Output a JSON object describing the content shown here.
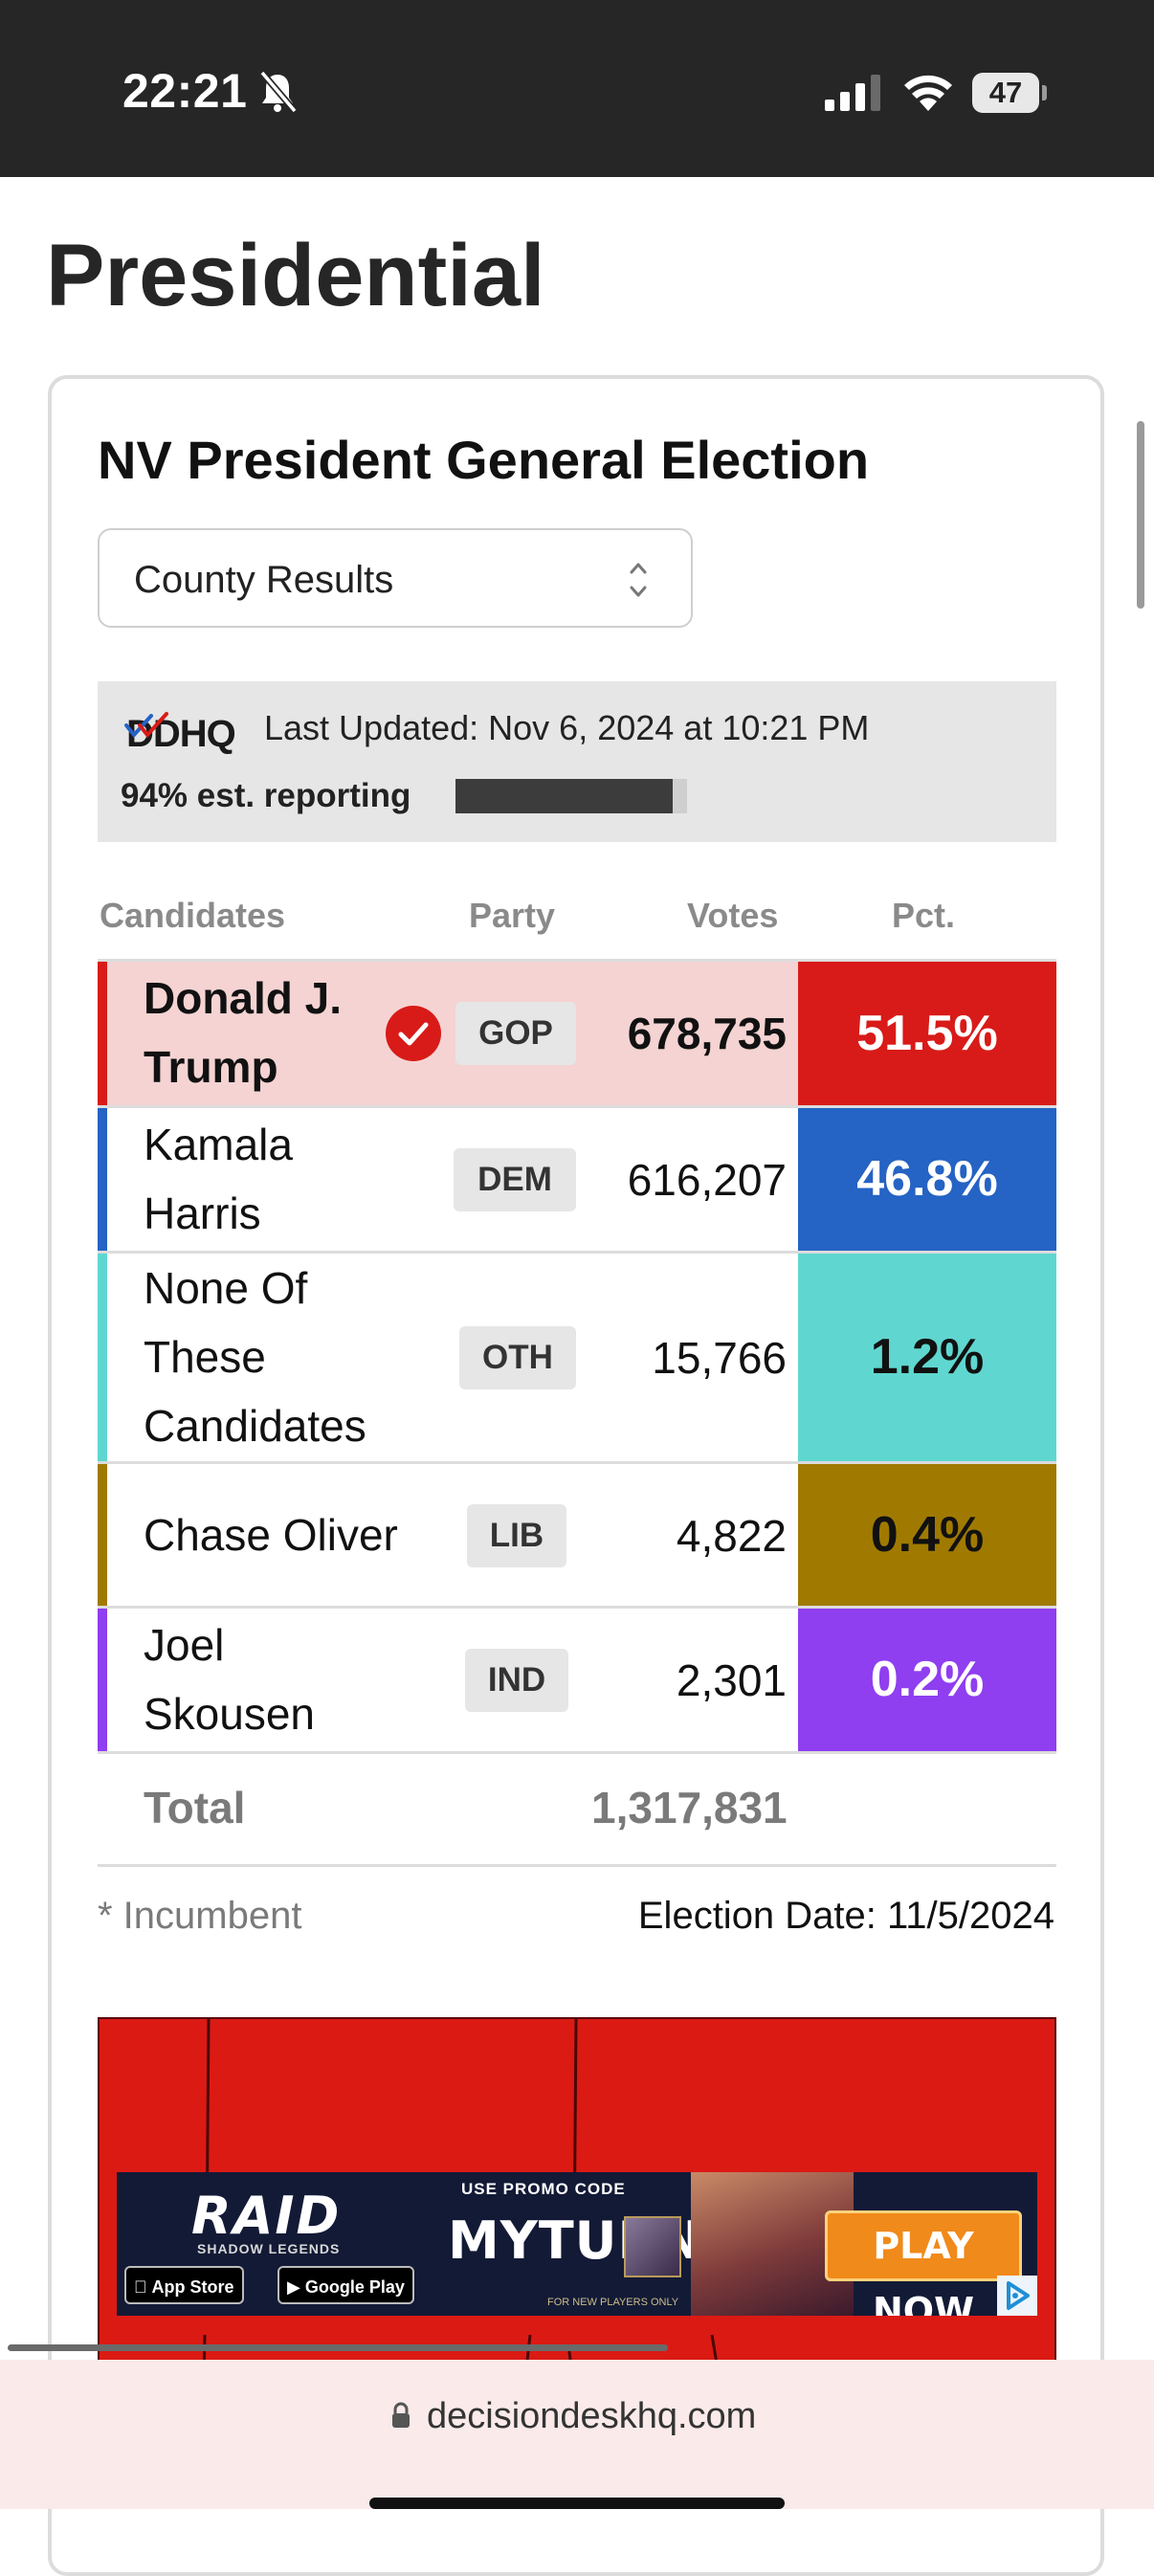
{
  "status_bar": {
    "time": "22:21",
    "battery": "47"
  },
  "page": {
    "title": "Presidential"
  },
  "card": {
    "title": "NV President General Election",
    "view_select": {
      "value": "County Results"
    },
    "source_logo": "DDHQ",
    "last_updated": "Last Updated: Nov 6, 2024 at 10:21 PM",
    "reporting_label": "94% est. reporting",
    "reporting_fraction": 0.94,
    "columns": {
      "candidates": "Candidates",
      "party": "Party",
      "votes": "Votes",
      "pct": "Pct."
    },
    "rows": [
      {
        "name_line1": "Donald J.",
        "name_line2": "Trump",
        "name_line3": "",
        "winner": true,
        "party": "GOP",
        "votes": "678,735",
        "pct": "51.5%",
        "color": "#d81b18",
        "row_bg": "#f5d3d3",
        "pct_text_color": "#ffffff"
      },
      {
        "name_line1": "Kamala",
        "name_line2": "Harris",
        "name_line3": "",
        "winner": false,
        "party": "DEM",
        "votes": "616,207",
        "pct": "46.8%",
        "color": "#2563c4",
        "row_bg": "#ffffff",
        "pct_text_color": "#ffffff"
      },
      {
        "name_line1": "None Of",
        "name_line2": "These",
        "name_line3": "Candidates",
        "winner": false,
        "party": "OTH",
        "votes": "15,766",
        "pct": "1.2%",
        "color": "#5fd7d0",
        "row_bg": "#ffffff",
        "pct_text_color": "#111111"
      },
      {
        "name_line1": "Chase Oliver",
        "name_line2": "",
        "name_line3": "",
        "winner": false,
        "party": "LIB",
        "votes": "4,822",
        "pct": "0.4%",
        "color": "#a07a00",
        "row_bg": "#ffffff",
        "pct_text_color": "#111111"
      },
      {
        "name_line1": "Joel",
        "name_line2": "Skousen",
        "name_line3": "",
        "winner": false,
        "party": "IND",
        "votes": "2,301",
        "pct": "0.2%",
        "color": "#8f3ef0",
        "row_bg": "#ffffff",
        "pct_text_color": "#ffffff"
      }
    ],
    "total_label": "Total",
    "total_votes": "1,317,831",
    "incumbent_note": "* Incumbent",
    "election_date": "Election Date: 11/5/2024"
  },
  "ad": {
    "brand": "RAID",
    "brand_sub": "SHADOW LEGENDS",
    "app_store": "App Store",
    "google_play": "Google Play",
    "promo_label": "USE PROMO CODE",
    "promo_code": "MYTURN",
    "fine_print": "FOR NEW PLAYERS ONLY",
    "cta": "PLAY NOW"
  },
  "browser": {
    "url": "decisiondeskhq.com"
  }
}
